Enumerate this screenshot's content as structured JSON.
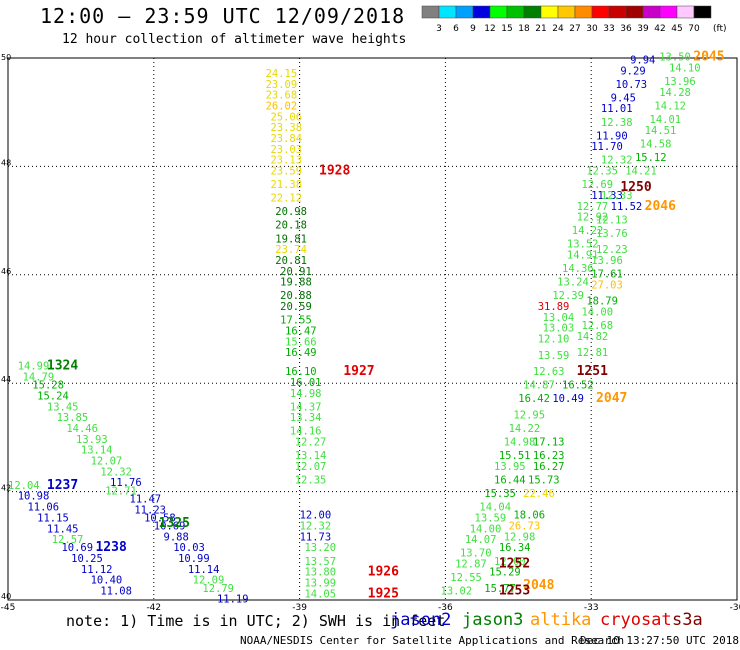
{
  "header": {
    "title": "12:00 — 23:59 UTC 12/09/2018",
    "subtitle": "12 hour collection of altimeter wave heights"
  },
  "color_scale": {
    "unit": "(ft)",
    "ticks": [
      "3",
      "6",
      "9",
      "12",
      "15",
      "18",
      "21",
      "24",
      "27",
      "30",
      "33",
      "36",
      "39",
      "42",
      "45",
      "70"
    ],
    "colors": [
      "#808080",
      "#00e5ff",
      "#00a0ff",
      "#0000e0",
      "#00ff00",
      "#00c000",
      "#008000",
      "#ffff00",
      "#ffc800",
      "#ff8c00",
      "#ff0000",
      "#c80000",
      "#a00000",
      "#c800c8",
      "#ff00ff",
      "#ffc8ff",
      "#000000"
    ]
  },
  "map": {
    "lon_range": [
      -45,
      -30
    ],
    "lat_range": [
      40,
      50
    ],
    "lon_ticks": [
      "-45",
      "-42",
      "-39",
      "-36",
      "-33",
      "-30"
    ],
    "lat_ticks": [
      "50",
      "48",
      "46",
      "44",
      "42",
      "40"
    ],
    "grid": "dotted"
  },
  "colors": {
    "jason2": "#0000c8",
    "jason3": "#008000",
    "altika": "#ff9600",
    "cryosat": "#e00000",
    "s3a": "#800000",
    "c3": "#a0a0a0",
    "c12": "#0000c8",
    "c15": "#40e040",
    "c18": "#00b000",
    "c21": "#007000",
    "c24": "#e8d800",
    "c27": "#ffc000",
    "c30": "#ff8c00",
    "c33": "#e00000"
  },
  "legend": {
    "note": "note: 1) Time is in UTC; 2) SWH is in feet",
    "items": [
      {
        "name": "jason2",
        "color": "#0000c8"
      },
      {
        "name": "jason3",
        "color": "#008000"
      },
      {
        "name": "altika",
        "color": "#ff9600"
      },
      {
        "name": "cryosat",
        "color": "#e00000"
      },
      {
        "name": "s3a",
        "color": "#800000"
      }
    ]
  },
  "footer": {
    "credits": "NOAA/NESDIS Center for Satellite Applications and Research",
    "timestamp": "Dec 10 13:27:50 UTC 2018"
  },
  "track_times": [
    {
      "text": "1928",
      "sat": "cryosat",
      "lon": -38.6,
      "lat": 47.85
    },
    {
      "text": "1927",
      "sat": "cryosat",
      "lon": -38.1,
      "lat": 44.15
    },
    {
      "text": "1926",
      "sat": "cryosat",
      "lon": -37.6,
      "lat": 40.45
    },
    {
      "text": "1925",
      "sat": "cryosat",
      "lon": -37.6,
      "lat": 40.05
    },
    {
      "text": "2045",
      "sat": "altika",
      "lon": -30.9,
      "lat": 49.95
    },
    {
      "text": "2046",
      "sat": "altika",
      "lon": -31.9,
      "lat": 47.2
    },
    {
      "text": "2047",
      "sat": "altika",
      "lon": -32.9,
      "lat": 43.65
    },
    {
      "text": "2048",
      "sat": "altika",
      "lon": -34.4,
      "lat": 40.2
    },
    {
      "text": "1250",
      "sat": "s3a",
      "lon": -32.4,
      "lat": 47.55
    },
    {
      "text": "1251",
      "sat": "s3a",
      "lon": -33.3,
      "lat": 44.15
    },
    {
      "text": "1252",
      "sat": "s3a",
      "lon": -34.9,
      "lat": 40.6
    },
    {
      "text": "1253",
      "sat": "s3a",
      "lon": -34.9,
      "lat": 40.1
    },
    {
      "text": "1324",
      "sat": "jason3",
      "lon": -44.2,
      "lat": 44.25
    },
    {
      "text": "1325",
      "sat": "jason3",
      "lon": -41.9,
      "lat": 41.35
    },
    {
      "text": "1237",
      "sat": "jason2",
      "lon": -44.2,
      "lat": 42.05
    },
    {
      "text": "1238",
      "sat": "jason2",
      "lon": -43.2,
      "lat": 40.9
    }
  ],
  "swh_points": [
    {
      "v": "24.15",
      "c": "c24",
      "lon": -39.7,
      "lat": 49.65
    },
    {
      "v": "23.09",
      "c": "c24",
      "lon": -39.7,
      "lat": 49.45
    },
    {
      "v": "23.68",
      "c": "c24",
      "lon": -39.7,
      "lat": 49.25
    },
    {
      "v": "26.02",
      "c": "c27",
      "lon": -39.7,
      "lat": 49.05
    },
    {
      "v": "25.06",
      "c": "c24",
      "lon": -39.6,
      "lat": 48.85
    },
    {
      "v": "23.38",
      "c": "c24",
      "lon": -39.6,
      "lat": 48.65
    },
    {
      "v": "23.84",
      "c": "c24",
      "lon": -39.6,
      "lat": 48.45
    },
    {
      "v": "23.03",
      "c": "c24",
      "lon": -39.6,
      "lat": 48.25
    },
    {
      "v": "23.13",
      "c": "c24",
      "lon": -39.6,
      "lat": 48.05
    },
    {
      "v": "23.59",
      "c": "c24",
      "lon": -39.6,
      "lat": 47.85
    },
    {
      "v": "21.38",
      "c": "c24",
      "lon": -39.6,
      "lat": 47.6
    },
    {
      "v": "22.12",
      "c": "c24",
      "lon": -39.6,
      "lat": 47.35
    },
    {
      "v": "20.98",
      "c": "c21",
      "lon": -39.5,
      "lat": 47.1
    },
    {
      "v": "20.18",
      "c": "c21",
      "lon": -39.5,
      "lat": 46.85
    },
    {
      "v": "19.81",
      "c": "c21",
      "lon": -39.5,
      "lat": 46.6
    },
    {
      "v": "23.74",
      "c": "c24",
      "lon": -39.5,
      "lat": 46.4
    },
    {
      "v": "20.81",
      "c": "c21",
      "lon": -39.5,
      "lat": 46.2
    },
    {
      "v": "20.91",
      "c": "c21",
      "lon": -39.4,
      "lat": 46.0
    },
    {
      "v": "19.88",
      "c": "c21",
      "lon": -39.4,
      "lat": 45.8
    },
    {
      "v": "20.88",
      "c": "c21",
      "lon": -39.4,
      "lat": 45.55
    },
    {
      "v": "20.59",
      "c": "c21",
      "lon": -39.4,
      "lat": 45.35
    },
    {
      "v": "17.55",
      "c": "c18",
      "lon": -39.4,
      "lat": 45.1
    },
    {
      "v": "16.47",
      "c": "c18",
      "lon": -39.3,
      "lat": 44.9
    },
    {
      "v": "15.66",
      "c": "c15",
      "lon": -39.3,
      "lat": 44.7
    },
    {
      "v": "16.49",
      "c": "c18",
      "lon": -39.3,
      "lat": 44.5
    },
    {
      "v": "16.10",
      "c": "c18",
      "lon": -39.3,
      "lat": 44.15
    },
    {
      "v": "16.01",
      "c": "c18",
      "lon": -39.2,
      "lat": 43.95
    },
    {
      "v": "14.98",
      "c": "c15",
      "lon": -39.2,
      "lat": 43.75
    },
    {
      "v": "14.37",
      "c": "c15",
      "lon": -39.2,
      "lat": 43.5
    },
    {
      "v": "13.34",
      "c": "c15",
      "lon": -39.2,
      "lat": 43.3
    },
    {
      "v": "14.16",
      "c": "c15",
      "lon": -39.2,
      "lat": 43.05
    },
    {
      "v": "12.27",
      "c": "c15",
      "lon": -39.1,
      "lat": 42.85
    },
    {
      "v": "13.14",
      "c": "c15",
      "lon": -39.1,
      "lat": 42.6
    },
    {
      "v": "12.07",
      "c": "c15",
      "lon": -39.1,
      "lat": 42.4
    },
    {
      "v": "12.35",
      "c": "c15",
      "lon": -39.1,
      "lat": 42.15
    },
    {
      "v": "12.00",
      "c": "c12",
      "lon": -39.0,
      "lat": 41.5
    },
    {
      "v": "12.32",
      "c": "c15",
      "lon": -39.0,
      "lat": 41.3
    },
    {
      "v": "11.73",
      "c": "c12",
      "lon": -39.0,
      "lat": 41.1
    },
    {
      "v": "13.20",
      "c": "c15",
      "lon": -38.9,
      "lat": 40.9
    },
    {
      "v": "13.57",
      "c": "c15",
      "lon": -38.9,
      "lat": 40.65
    },
    {
      "v": "13.80",
      "c": "c15",
      "lon": -38.9,
      "lat": 40.45
    },
    {
      "v": "13.99",
      "c": "c15",
      "lon": -38.9,
      "lat": 40.25
    },
    {
      "v": "14.05",
      "c": "c15",
      "lon": -38.9,
      "lat": 40.05
    },
    {
      "v": "13.50",
      "c": "c15",
      "lon": -31.6,
      "lat": 49.95
    },
    {
      "v": "14.10",
      "c": "c15",
      "lon": -31.4,
      "lat": 49.75
    },
    {
      "v": "13.96",
      "c": "c15",
      "lon": -31.5,
      "lat": 49.5
    },
    {
      "v": "14.28",
      "c": "c15",
      "lon": -31.6,
      "lat": 49.3
    },
    {
      "v": "14.12",
      "c": "c15",
      "lon": -31.7,
      "lat": 49.05
    },
    {
      "v": "14.01",
      "c": "c15",
      "lon": -31.8,
      "lat": 48.8
    },
    {
      "v": "14.51",
      "c": "c15",
      "lon": -31.9,
      "lat": 48.6
    },
    {
      "v": "14.58",
      "c": "c15",
      "lon": -32.0,
      "lat": 48.35
    },
    {
      "v": "15.12",
      "c": "c18",
      "lon": -32.1,
      "lat": 48.1
    },
    {
      "v": "14.21",
      "c": "c15",
      "lon": -32.3,
      "lat": 47.85
    },
    {
      "v": "9.94",
      "c": "c12",
      "lon": -32.2,
      "lat": 49.9
    },
    {
      "v": "9.29",
      "c": "c12",
      "lon": -32.4,
      "lat": 49.7
    },
    {
      "v": "10.73",
      "c": "c12",
      "lon": -32.5,
      "lat": 49.45
    },
    {
      "v": "9.45",
      "c": "c12",
      "lon": -32.6,
      "lat": 49.2
    },
    {
      "v": "11.01",
      "c": "c12",
      "lon": -32.8,
      "lat": 49.0
    },
    {
      "v": "12.38",
      "c": "c15",
      "lon": -32.8,
      "lat": 48.75
    },
    {
      "v": "11.90",
      "c": "c12",
      "lon": -32.9,
      "lat": 48.5
    },
    {
      "v": "11.70",
      "c": "c12",
      "lon": -33.0,
      "lat": 48.3
    },
    {
      "v": "12.32",
      "c": "c15",
      "lon": -32.8,
      "lat": 48.05
    },
    {
      "v": "12.35",
      "c": "c15",
      "lon": -33.1,
      "lat": 47.85
    },
    {
      "v": "12.69",
      "c": "c15",
      "lon": -33.2,
      "lat": 47.6
    },
    {
      "v": "11.33",
      "c": "c12",
      "lon": -33.0,
      "lat": 47.4
    },
    {
      "v": "12.33",
      "c": "c15",
      "lon": -32.8,
      "lat": 47.4
    },
    {
      "v": "11.52",
      "c": "c12",
      "lon": -32.6,
      "lat": 47.2
    },
    {
      "v": "12.77",
      "c": "c15",
      "lon": -33.3,
      "lat": 47.2
    },
    {
      "v": "12.92",
      "c": "c15",
      "lon": -33.3,
      "lat": 47.0
    },
    {
      "v": "12.13",
      "c": "c15",
      "lon": -32.9,
      "lat": 46.95
    },
    {
      "v": "14.22",
      "c": "c15",
      "lon": -33.4,
      "lat": 46.75
    },
    {
      "v": "13.76",
      "c": "c15",
      "lon": -32.9,
      "lat": 46.7
    },
    {
      "v": "13.52",
      "c": "c15",
      "lon": -33.5,
      "lat": 46.5
    },
    {
      "v": "12.23",
      "c": "c15",
      "lon": -32.9,
      "lat": 46.4
    },
    {
      "v": "14.91",
      "c": "c15",
      "lon": -33.5,
      "lat": 46.3
    },
    {
      "v": "13.96",
      "c": "c15",
      "lon": -33.0,
      "lat": 46.2
    },
    {
      "v": "14.36",
      "c": "c15",
      "lon": -33.6,
      "lat": 46.05
    },
    {
      "v": "17.61",
      "c": "c18",
      "lon": -33.0,
      "lat": 45.95
    },
    {
      "v": "13.24",
      "c": "c15",
      "lon": -33.7,
      "lat": 45.8
    },
    {
      "v": "27.03",
      "c": "c27",
      "lon": -33.0,
      "lat": 45.75
    },
    {
      "v": "12.39",
      "c": "c15",
      "lon": -33.8,
      "lat": 45.55
    },
    {
      "v": "18.79",
      "c": "c18",
      "lon": -33.1,
      "lat": 45.45
    },
    {
      "v": "31.89",
      "c": "c33",
      "lon": -34.1,
      "lat": 45.35
    },
    {
      "v": "14.00",
      "c": "c15",
      "lon": -33.2,
      "lat": 45.25
    },
    {
      "v": "13.04",
      "c": "c15",
      "lon": -34.0,
      "lat": 45.15
    },
    {
      "v": "12.68",
      "c": "c15",
      "lon": -33.2,
      "lat": 45.0
    },
    {
      "v": "13.03",
      "c": "c15",
      "lon": -34.0,
      "lat": 44.95
    },
    {
      "v": "14.82",
      "c": "c15",
      "lon": -33.3,
      "lat": 44.8
    },
    {
      "v": "12.10",
      "c": "c15",
      "lon": -34.1,
      "lat": 44.75
    },
    {
      "v": "12.81",
      "c": "c15",
      "lon": -33.3,
      "lat": 44.5
    },
    {
      "v": "13.59",
      "c": "c15",
      "lon": -34.1,
      "lat": 44.45
    },
    {
      "v": "12.63",
      "c": "c15",
      "lon": -34.2,
      "lat": 44.15
    },
    {
      "v": "14.87",
      "c": "c15",
      "lon": -34.4,
      "lat": 43.9
    },
    {
      "v": "16.52",
      "c": "c18",
      "lon": -33.6,
      "lat": 43.9
    },
    {
      "v": "16.42",
      "c": "c18",
      "lon": -34.5,
      "lat": 43.65
    },
    {
      "v": "10.49",
      "c": "c12",
      "lon": -33.8,
      "lat": 43.65
    },
    {
      "v": "12.95",
      "c": "c15",
      "lon": -34.6,
      "lat": 43.35
    },
    {
      "v": "14.22",
      "c": "c15",
      "lon": -34.7,
      "lat": 43.1
    },
    {
      "v": "14.98",
      "c": "c15",
      "lon": -34.8,
      "lat": 42.85
    },
    {
      "v": "17.13",
      "c": "c18",
      "lon": -34.2,
      "lat": 42.85
    },
    {
      "v": "15.51",
      "c": "c18",
      "lon": -34.9,
      "lat": 42.6
    },
    {
      "v": "16.23",
      "c": "c18",
      "lon": -34.2,
      "lat": 42.6
    },
    {
      "v": "13.95",
      "c": "c15",
      "lon": -35.0,
      "lat": 42.4
    },
    {
      "v": "16.27",
      "c": "c18",
      "lon": -34.2,
      "lat": 42.4
    },
    {
      "v": "16.44",
      "c": "c18",
      "lon": -35.0,
      "lat": 42.15
    },
    {
      "v": "15.73",
      "c": "c18",
      "lon": -34.3,
      "lat": 42.15
    },
    {
      "v": "15.35",
      "c": "c18",
      "lon": -35.2,
      "lat": 41.9
    },
    {
      "v": "22.46",
      "c": "c24",
      "lon": -34.4,
      "lat": 41.9
    },
    {
      "v": "14.04",
      "c": "c15",
      "lon": -35.3,
      "lat": 41.65
    },
    {
      "v": "18.06",
      "c": "c18",
      "lon": -34.6,
      "lat": 41.5
    },
    {
      "v": "13.59",
      "c": "c15",
      "lon": -35.4,
      "lat": 41.45
    },
    {
      "v": "26.73",
      "c": "c27",
      "lon": -34.7,
      "lat": 41.3
    },
    {
      "v": "14.00",
      "c": "c15",
      "lon": -35.5,
      "lat": 41.25
    },
    {
      "v": "12.98",
      "c": "c15",
      "lon": -34.8,
      "lat": 41.1
    },
    {
      "v": "14.07",
      "c": "c15",
      "lon": -35.6,
      "lat": 41.05
    },
    {
      "v": "16.34",
      "c": "c18",
      "lon": -34.9,
      "lat": 40.9
    },
    {
      "v": "13.70",
      "c": "c15",
      "lon": -35.7,
      "lat": 40.8
    },
    {
      "v": "12.00",
      "c": "c15",
      "lon": -35.0,
      "lat": 40.65
    },
    {
      "v": "12.87",
      "c": "c15",
      "lon": -35.8,
      "lat": 40.6
    },
    {
      "v": "15.29",
      "c": "c18",
      "lon": -35.1,
      "lat": 40.45
    },
    {
      "v": "12.55",
      "c": "c15",
      "lon": -35.9,
      "lat": 40.35
    },
    {
      "v": "15.77",
      "c": "c18",
      "lon": -35.2,
      "lat": 40.15
    },
    {
      "v": "13.02",
      "c": "c15",
      "lon": -36.1,
      "lat": 40.1
    },
    {
      "v": "14.99",
      "c": "c15",
      "lon": -44.8,
      "lat": 44.25
    },
    {
      "v": "14.79",
      "c": "c15",
      "lon": -44.7,
      "lat": 44.05
    },
    {
      "v": "15.28",
      "c": "c18",
      "lon": -44.5,
      "lat": 43.9
    },
    {
      "v": "15.24",
      "c": "c18",
      "lon": -44.4,
      "lat": 43.7
    },
    {
      "v": "13.45",
      "c": "c15",
      "lon": -44.2,
      "lat": 43.5
    },
    {
      "v": "13.85",
      "c": "c15",
      "lon": -44.0,
      "lat": 43.3
    },
    {
      "v": "14.46",
      "c": "c15",
      "lon": -43.8,
      "lat": 43.1
    },
    {
      "v": "13.93",
      "c": "c15",
      "lon": -43.6,
      "lat": 42.9
    },
    {
      "v": "13.14",
      "c": "c15",
      "lon": -43.5,
      "lat": 42.7
    },
    {
      "v": "12.07",
      "c": "c15",
      "lon": -43.3,
      "lat": 42.5
    },
    {
      "v": "12.32",
      "c": "c15",
      "lon": -43.1,
      "lat": 42.3
    },
    {
      "v": "11.76",
      "c": "c12",
      "lon": -42.9,
      "lat": 42.1
    },
    {
      "v": "12.71",
      "c": "c15",
      "lon": -43.0,
      "lat": 41.95
    },
    {
      "v": "11.47",
      "c": "c12",
      "lon": -42.5,
      "lat": 41.8
    },
    {
      "v": "11.23",
      "c": "c12",
      "lon": -42.4,
      "lat": 41.6
    },
    {
      "v": "10.58",
      "c": "c12",
      "lon": -42.2,
      "lat": 41.45
    },
    {
      "v": "10.69",
      "c": "c12",
      "lon": -42.0,
      "lat": 41.3
    },
    {
      "v": "9.88",
      "c": "c12",
      "lon": -41.8,
      "lat": 41.1
    },
    {
      "v": "10.03",
      "c": "c12",
      "lon": -41.6,
      "lat": 40.9
    },
    {
      "v": "10.99",
      "c": "c12",
      "lon": -41.5,
      "lat": 40.7
    },
    {
      "v": "11.14",
      "c": "c12",
      "lon": -41.3,
      "lat": 40.5
    },
    {
      "v": "12.09",
      "c": "c15",
      "lon": -41.2,
      "lat": 40.3
    },
    {
      "v": "12.79",
      "c": "c15",
      "lon": -41.0,
      "lat": 40.15
    },
    {
      "v": "11.19",
      "c": "c12",
      "lon": -40.7,
      "lat": 39.95
    },
    {
      "v": "12.04",
      "c": "c15",
      "lon": -45.0,
      "lat": 42.05
    },
    {
      "v": "10.98",
      "c": "c12",
      "lon": -44.8,
      "lat": 41.85
    },
    {
      "v": "11.06",
      "c": "c12",
      "lon": -44.6,
      "lat": 41.65
    },
    {
      "v": "11.15",
      "c": "c12",
      "lon": -44.4,
      "lat": 41.45
    },
    {
      "v": "11.45",
      "c": "c12",
      "lon": -44.2,
      "lat": 41.25
    },
    {
      "v": "12.57",
      "c": "c15",
      "lon": -44.1,
      "lat": 41.05
    },
    {
      "v": "10.69",
      "c": "c12",
      "lon": -43.9,
      "lat": 40.9
    },
    {
      "v": "10.25",
      "c": "c12",
      "lon": -43.7,
      "lat": 40.7
    },
    {
      "v": "11.12",
      "c": "c12",
      "lon": -43.5,
      "lat": 40.5
    },
    {
      "v": "10.40",
      "c": "c12",
      "lon": -43.3,
      "lat": 40.3
    },
    {
      "v": "11.08",
      "c": "c12",
      "lon": -43.1,
      "lat": 40.1
    }
  ]
}
